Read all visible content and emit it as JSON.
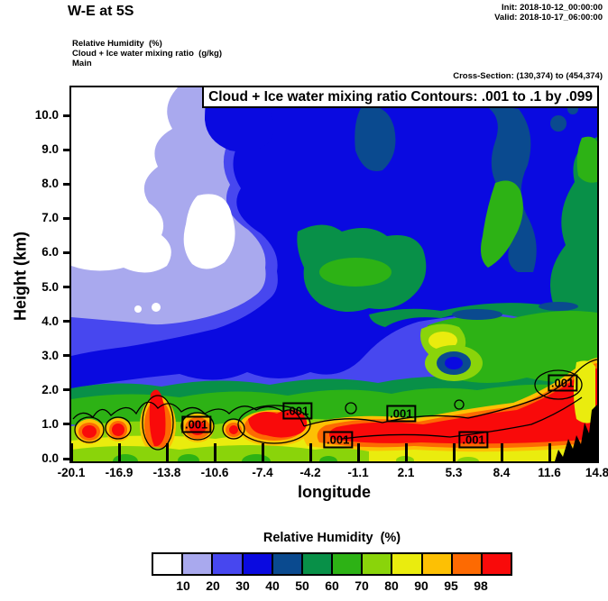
{
  "header": {
    "title": "W-E at 5S",
    "init": "Init: 2018-10-12_00:00:00",
    "valid": "Valid: 2018-10-17_06:00:00",
    "field_line1": "Relative Humidity  (%)",
    "field_line2": "Cloud + Ice water mixing ratio  (g/kg)",
    "field_line3": "Main",
    "cross_section": "Cross-Section: (130,374) to (454,374)"
  },
  "chart_data": {
    "type": "heatmap",
    "title": "Cloud + Ice water mixing ratio Contours: .001 to .1 by .099",
    "xlabel": "longitude",
    "ylabel": "Height (km)",
    "xlim": [
      -20.1,
      14.8
    ],
    "ylim_km": [
      0.0,
      10.9
    ],
    "x_ticks": [
      "-20.1",
      "-16.9",
      "-13.8",
      "-10.6",
      "-7.4",
      "-4.2",
      "-1.1",
      "2.1",
      "5.3",
      "8.4",
      "11.6",
      "14.8"
    ],
    "y_ticks": [
      "0.0",
      "1.0",
      "2.0",
      "3.0",
      "4.0",
      "5.0",
      "6.0",
      "7.0",
      "8.0",
      "9.0",
      "10.0"
    ],
    "grid": false,
    "legend": {
      "title": "Relative Humidity  (%)",
      "position": "bottom",
      "labels": [
        "10",
        "20",
        "30",
        "40",
        "50",
        "60",
        "70",
        "80",
        "90",
        "95",
        "98"
      ],
      "colors": [
        "#ffffff",
        "#a9a9ee",
        "#4747ef",
        "#0a0ae0",
        "#0a4a8f",
        "#089048",
        "#2db215",
        "#8ad40a",
        "#eaec0e",
        "#fdc004",
        "#fd6a02",
        "#f90a0a"
      ]
    },
    "terrain_color": "#000000",
    "terrain": {
      "lon_start": 12.0,
      "lon_end": 14.8,
      "max_height_km": 1.5
    },
    "contour_label": ".001",
    "contour_labels": [
      {
        "lon": -11.8,
        "km": 1.0
      },
      {
        "lon": -5.1,
        "km": 1.4
      },
      {
        "lon": -2.4,
        "km": 0.55
      },
      {
        "lon": 1.8,
        "km": 1.3
      },
      {
        "lon": 6.6,
        "km": 0.55
      },
      {
        "lon": 12.5,
        "km": 2.2
      }
    ],
    "rh_grid": {
      "lons": [
        -20.1,
        -16.9,
        -13.8,
        -10.6,
        -7.4,
        -4.2,
        -1.1,
        2.1,
        5.3,
        8.4,
        11.6,
        14.8
      ],
      "heights_km": [
        0,
        1,
        2,
        3,
        4,
        5,
        6,
        7,
        8,
        9,
        10
      ],
      "values_percent": [
        [
          75,
          80,
          75,
          80,
          80,
          75,
          80,
          85,
          80,
          80,
          85,
          85
        ],
        [
          90,
          98,
          99,
          90,
          95,
          99,
          90,
          98,
          99,
          99,
          99,
          99
        ],
        [
          30,
          40,
          50,
          55,
          55,
          65,
          60,
          65,
          65,
          70,
          75,
          85
        ],
        [
          20,
          25,
          35,
          35,
          45,
          55,
          65,
          65,
          40,
          65,
          70,
          75
        ],
        [
          15,
          25,
          25,
          35,
          35,
          45,
          55,
          55,
          65,
          65,
          70,
          60
        ],
        [
          15,
          15,
          25,
          25,
          35,
          35,
          45,
          45,
          55,
          60,
          65,
          55
        ],
        [
          10,
          5,
          15,
          25,
          25,
          35,
          35,
          35,
          45,
          50,
          60,
          65
        ],
        [
          5,
          5,
          15,
          25,
          35,
          35,
          35,
          45,
          35,
          50,
          55,
          60
        ],
        [
          5,
          10,
          20,
          15,
          35,
          35,
          35,
          35,
          45,
          35,
          50,
          55
        ],
        [
          5,
          15,
          25,
          35,
          25,
          35,
          35,
          35,
          35,
          45,
          45,
          50
        ],
        [
          5,
          15,
          25,
          35,
          35,
          45,
          35,
          35,
          35,
          45,
          35,
          30
        ]
      ]
    }
  }
}
